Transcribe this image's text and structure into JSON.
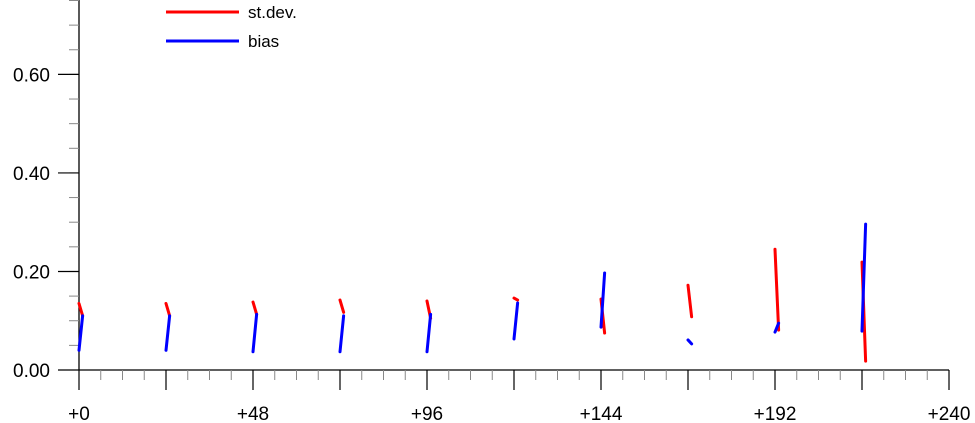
{
  "chart_data": {
    "type": "line",
    "title": "",
    "xlabel": "",
    "ylabel": "",
    "xlim": [
      0,
      240
    ],
    "ylim": [
      0,
      0.75
    ],
    "x_ticks": [
      0,
      48,
      96,
      144,
      192,
      240
    ],
    "x_tick_labels": [
      "+0",
      "+48",
      "+96",
      "+144",
      "+192",
      "+240"
    ],
    "x_minor_step": 6,
    "y_ticks": [
      0,
      0.2,
      0.4,
      0.6
    ],
    "y_tick_labels": [
      "0.00",
      "0.20",
      "0.40",
      "0.60"
    ],
    "y_minor_step": 0.05,
    "grid": false,
    "legend_position": "top-left",
    "series": [
      {
        "name": "st.dev.",
        "color": "#ff0000",
        "segments": [
          {
            "x": [
              0,
              1
            ],
            "y": [
              0.135,
              0.11
            ]
          },
          {
            "x": [
              24,
              25
            ],
            "y": [
              0.135,
              0.11
            ]
          },
          {
            "x": [
              48,
              49
            ],
            "y": [
              0.138,
              0.113
            ]
          },
          {
            "x": [
              72,
              73
            ],
            "y": [
              0.142,
              0.117
            ]
          },
          {
            "x": [
              96,
              97
            ],
            "y": [
              0.14,
              0.105
            ]
          },
          {
            "x": [
              120,
              121
            ],
            "y": [
              0.146,
              0.142
            ]
          },
          {
            "x": [
              144,
              145
            ],
            "y": [
              0.144,
              0.075
            ]
          },
          {
            "x": [
              168,
              169
            ],
            "y": [
              0.172,
              0.108
            ]
          },
          {
            "x": [
              192,
              193
            ],
            "y": [
              0.245,
              0.081
            ]
          },
          {
            "x": [
              216,
              217
            ],
            "y": [
              0.219,
              0.018
            ]
          }
        ]
      },
      {
        "name": "bias",
        "color": "#0000ff",
        "segments": [
          {
            "x": [
              0,
              1
            ],
            "y": [
              0.04,
              0.11
            ]
          },
          {
            "x": [
              24,
              25
            ],
            "y": [
              0.04,
              0.11
            ]
          },
          {
            "x": [
              48,
              49
            ],
            "y": [
              0.037,
              0.113
            ]
          },
          {
            "x": [
              72,
              73
            ],
            "y": [
              0.037,
              0.11
            ]
          },
          {
            "x": [
              96,
              97
            ],
            "y": [
              0.037,
              0.113
            ]
          },
          {
            "x": [
              120,
              121
            ],
            "y": [
              0.063,
              0.136
            ]
          },
          {
            "x": [
              144,
              145
            ],
            "y": [
              0.087,
              0.197
            ]
          },
          {
            "x": [
              168,
              169
            ],
            "y": [
              0.061,
              0.053
            ]
          },
          {
            "x": [
              192,
              193
            ],
            "y": [
              0.077,
              0.095
            ]
          },
          {
            "x": [
              216,
              217
            ],
            "y": [
              0.079,
              0.296
            ]
          }
        ]
      }
    ]
  }
}
